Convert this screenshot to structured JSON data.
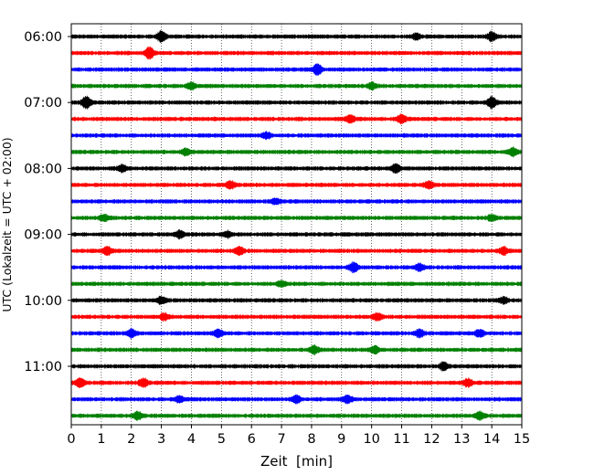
{
  "chart_data": {
    "type": "line",
    "chart_kind": "seismic helicorder",
    "xlabel": "Zeit  [min]",
    "ylabel": "UTC (Lokalzeit = UTC + 02:00)",
    "xlim": [
      0,
      15
    ],
    "x_ticks": [
      "0",
      "1",
      "2",
      "3",
      "4",
      "5",
      "6",
      "7",
      "8",
      "9",
      "10",
      "11",
      "12",
      "13",
      "14",
      "15"
    ],
    "vertical_gridlines": "dotted at every minute",
    "trace_interval_min": 15,
    "start_time": "06:00",
    "end_time": "11:45",
    "y_tick_labels": [
      "06:00",
      "07:00",
      "08:00",
      "09:00",
      "10:00",
      "11:00"
    ],
    "trace_colors": [
      "#000000",
      "#ff0000",
      "#0000ff",
      "#008000"
    ],
    "traces": [
      {
        "time": "06:00",
        "color": "#000000",
        "events": [
          {
            "min": 3.0,
            "amp": 1.6
          },
          {
            "min": 11.5,
            "amp": 0.9
          },
          {
            "min": 14.0,
            "amp": 1.4
          }
        ]
      },
      {
        "time": "06:15",
        "color": "#ff0000",
        "events": [
          {
            "min": 2.6,
            "amp": 1.8
          }
        ]
      },
      {
        "time": "06:30",
        "color": "#0000ff",
        "events": [
          {
            "min": 8.2,
            "amp": 1.8
          }
        ]
      },
      {
        "time": "06:45",
        "color": "#008000",
        "events": [
          {
            "min": 4.0,
            "amp": 1.0
          },
          {
            "min": 10.0,
            "amp": 1.0
          }
        ]
      },
      {
        "time": "07:00",
        "color": "#000000",
        "events": [
          {
            "min": 0.5,
            "amp": 2.0
          },
          {
            "min": 14.0,
            "amp": 1.8
          }
        ]
      },
      {
        "time": "07:15",
        "color": "#ff0000",
        "events": [
          {
            "min": 9.3,
            "amp": 1.1
          },
          {
            "min": 11.0,
            "amp": 1.3
          }
        ]
      },
      {
        "time": "07:30",
        "color": "#0000ff",
        "events": [
          {
            "min": 6.5,
            "amp": 1.0
          }
        ]
      },
      {
        "time": "07:45",
        "color": "#008000",
        "events": [
          {
            "min": 3.8,
            "amp": 1.0
          },
          {
            "min": 14.7,
            "amp": 1.2
          }
        ]
      },
      {
        "time": "08:00",
        "color": "#000000",
        "events": [
          {
            "min": 1.7,
            "amp": 1.0
          },
          {
            "min": 10.8,
            "amp": 1.5
          }
        ]
      },
      {
        "time": "08:15",
        "color": "#ff0000",
        "events": [
          {
            "min": 5.3,
            "amp": 1.1
          },
          {
            "min": 11.9,
            "amp": 1.1
          }
        ]
      },
      {
        "time": "08:30",
        "color": "#0000ff",
        "events": [
          {
            "min": 6.8,
            "amp": 0.9
          }
        ]
      },
      {
        "time": "08:45",
        "color": "#008000",
        "events": [
          {
            "min": 1.1,
            "amp": 1.0
          },
          {
            "min": 14.0,
            "amp": 0.9
          }
        ]
      },
      {
        "time": "09:00",
        "color": "#000000",
        "events": [
          {
            "min": 3.6,
            "amp": 1.1
          },
          {
            "min": 5.2,
            "amp": 0.9
          }
        ]
      },
      {
        "time": "09:15",
        "color": "#ff0000",
        "events": [
          {
            "min": 1.2,
            "amp": 1.3
          },
          {
            "min": 5.6,
            "amp": 1.2
          },
          {
            "min": 14.4,
            "amp": 1.1
          }
        ]
      },
      {
        "time": "09:30",
        "color": "#0000ff",
        "events": [
          {
            "min": 9.4,
            "amp": 1.5
          },
          {
            "min": 11.6,
            "amp": 1.1
          }
        ]
      },
      {
        "time": "09:45",
        "color": "#008000",
        "events": [
          {
            "min": 7.0,
            "amp": 0.9
          }
        ]
      },
      {
        "time": "10:00",
        "color": "#000000",
        "events": [
          {
            "min": 3.0,
            "amp": 1.0
          },
          {
            "min": 14.4,
            "amp": 0.9
          }
        ]
      },
      {
        "time": "10:15",
        "color": "#ff0000",
        "events": [
          {
            "min": 3.1,
            "amp": 1.0
          },
          {
            "min": 10.2,
            "amp": 1.2
          }
        ]
      },
      {
        "time": "10:30",
        "color": "#0000ff",
        "events": [
          {
            "min": 2.0,
            "amp": 1.3
          },
          {
            "min": 4.9,
            "amp": 1.2
          },
          {
            "min": 11.6,
            "amp": 1.1
          },
          {
            "min": 13.6,
            "amp": 1.2
          }
        ]
      },
      {
        "time": "10:45",
        "color": "#008000",
        "events": [
          {
            "min": 8.1,
            "amp": 1.3
          },
          {
            "min": 10.1,
            "amp": 1.2
          }
        ]
      },
      {
        "time": "11:00",
        "color": "#000000",
        "events": [
          {
            "min": 12.4,
            "amp": 1.2
          }
        ]
      },
      {
        "time": "11:15",
        "color": "#ff0000",
        "events": [
          {
            "min": 0.3,
            "amp": 1.4
          },
          {
            "min": 2.4,
            "amp": 1.3
          },
          {
            "min": 13.2,
            "amp": 1.2
          }
        ]
      },
      {
        "time": "11:30",
        "color": "#0000ff",
        "events": [
          {
            "min": 3.6,
            "amp": 1.1
          },
          {
            "min": 7.5,
            "amp": 1.2
          },
          {
            "min": 9.2,
            "amp": 1.2
          }
        ]
      },
      {
        "time": "11:45",
        "color": "#008000",
        "events": [
          {
            "min": 2.2,
            "amp": 1.2
          },
          {
            "min": 13.6,
            "amp": 1.2
          }
        ]
      }
    ]
  }
}
